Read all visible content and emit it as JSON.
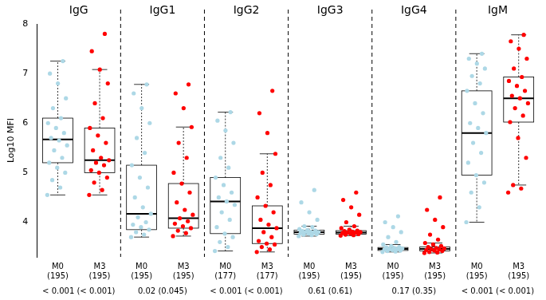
{
  "chart_data": {
    "type": "boxplot",
    "y_label": "Log10 MFI",
    "ylim": [
      3.3,
      8
    ],
    "yticks": [
      4,
      5,
      6,
      7,
      8
    ],
    "grid": false,
    "categories": [
      "M0",
      "M3",
      "M0",
      "M3",
      "M0",
      "M3",
      "M0",
      "M3",
      "M0",
      "M3",
      "M0",
      "M3"
    ],
    "count_labels": [
      "(195)",
      "(195)",
      "(195)",
      "(195)",
      "(177)",
      "(177)",
      "(195)",
      "(195)",
      "(195)",
      "(195)",
      "(195)",
      "(195)"
    ],
    "colors": [
      "#add8e6",
      "#ff0000",
      "#add8e6",
      "#ff0000",
      "#add8e6",
      "#ff0000",
      "#add8e6",
      "#ff0000",
      "#add8e6",
      "#ff0000",
      "#add8e6",
      "#ff0000"
    ],
    "groups": [
      {
        "title": "IgG",
        "p_value": "< 0.001 (< 0.001)"
      },
      {
        "title": "IgG1",
        "p_value": "0.02 (0.045)"
      },
      {
        "title": "IgG2",
        "p_value": "< 0.001 (< 0.001)"
      },
      {
        "title": "IgG3",
        "p_value": "0.61 (0.61)"
      },
      {
        "title": "IgG4",
        "p_value": "0.17 (0.35)"
      },
      {
        "title": "IgM",
        "p_value": "< 0.001 (< 0.001)"
      }
    ],
    "boxes": [
      {
        "stats": [
          4.55,
          5.2,
          5.67,
          6.1,
          7.25
        ],
        "points": [
          4.55,
          4.7,
          4.85,
          5.0,
          5.1,
          5.2,
          5.3,
          5.45,
          5.55,
          5.65,
          5.7,
          5.8,
          5.9,
          6.0,
          6.1,
          6.3,
          6.5,
          6.8,
          7.0,
          7.25
        ]
      },
      {
        "stats": [
          4.55,
          5.0,
          5.25,
          5.9,
          7.08
        ],
        "points": [
          4.55,
          4.65,
          4.8,
          4.9,
          5.0,
          5.05,
          5.15,
          5.2,
          5.25,
          5.3,
          5.45,
          5.6,
          5.75,
          5.9,
          6.1,
          6.4,
          6.8,
          7.08,
          7.45,
          7.8
        ]
      },
      {
        "stats": [
          3.7,
          3.85,
          4.17,
          5.15,
          6.78
        ],
        "points": [
          3.7,
          3.75,
          3.8,
          3.85,
          3.9,
          3.95,
          4.0,
          4.1,
          4.17,
          4.3,
          4.5,
          4.7,
          4.9,
          5.15,
          5.4,
          5.7,
          6.0,
          6.3,
          6.6,
          6.78
        ]
      },
      {
        "stats": [
          3.72,
          3.88,
          4.08,
          4.78,
          5.92
        ],
        "points": [
          3.72,
          3.78,
          3.83,
          3.88,
          3.92,
          3.97,
          4.02,
          4.08,
          4.15,
          4.25,
          4.4,
          4.6,
          4.78,
          5.0,
          5.3,
          5.6,
          5.92,
          6.3,
          6.6,
          6.78
        ]
      },
      {
        "stats": [
          3.42,
          3.77,
          4.42,
          4.9,
          6.22
        ],
        "points": [
          3.42,
          3.5,
          3.6,
          3.7,
          3.77,
          3.9,
          4.05,
          4.2,
          4.35,
          4.42,
          4.5,
          4.6,
          4.75,
          4.9,
          5.1,
          5.3,
          5.6,
          5.85,
          6.05,
          6.22
        ]
      },
      {
        "stats": [
          3.4,
          3.57,
          3.88,
          4.33,
          5.38
        ],
        "points": [
          3.4,
          3.45,
          3.5,
          3.55,
          3.57,
          3.62,
          3.7,
          3.8,
          3.88,
          3.95,
          4.05,
          4.2,
          4.33,
          4.5,
          4.75,
          5.0,
          5.38,
          5.8,
          6.2,
          6.65
        ]
      },
      {
        "stats": [
          3.72,
          3.76,
          3.8,
          3.84,
          3.92
        ],
        "points": [
          3.72,
          3.74,
          3.75,
          3.76,
          3.77,
          3.78,
          3.79,
          3.8,
          3.8,
          3.81,
          3.82,
          3.83,
          3.84,
          3.86,
          3.9,
          3.92,
          4.05,
          4.2,
          4.4,
          4.65
        ]
      },
      {
        "stats": [
          3.73,
          3.76,
          3.79,
          3.83,
          3.92
        ],
        "points": [
          3.73,
          3.74,
          3.75,
          3.76,
          3.77,
          3.78,
          3.79,
          3.79,
          3.8,
          3.81,
          3.82,
          3.83,
          3.85,
          3.88,
          3.92,
          4.0,
          4.15,
          4.3,
          4.45,
          4.6
        ]
      },
      {
        "stats": [
          3.4,
          3.43,
          3.46,
          3.49,
          3.55
        ],
        "points": [
          3.4,
          3.41,
          3.42,
          3.43,
          3.44,
          3.45,
          3.46,
          3.46,
          3.47,
          3.48,
          3.49,
          3.5,
          3.52,
          3.55,
          3.6,
          3.7,
          3.8,
          3.9,
          4.0,
          4.12
        ]
      },
      {
        "stats": [
          3.38,
          3.42,
          3.46,
          3.5,
          3.58
        ],
        "points": [
          3.38,
          3.39,
          3.4,
          3.42,
          3.43,
          3.44,
          3.45,
          3.46,
          3.47,
          3.48,
          3.5,
          3.52,
          3.55,
          3.58,
          3.65,
          3.75,
          3.9,
          4.05,
          4.25,
          4.5
        ]
      },
      {
        "stats": [
          4.0,
          4.95,
          5.8,
          6.65,
          7.4
        ],
        "points": [
          4.0,
          4.3,
          4.6,
          4.8,
          4.95,
          5.2,
          5.4,
          5.6,
          5.8,
          5.9,
          6.0,
          6.2,
          6.4,
          6.65,
          6.8,
          6.95,
          7.1,
          7.2,
          7.3,
          7.4
        ]
      },
      {
        "stats": [
          4.75,
          6.02,
          6.5,
          6.93,
          7.78
        ],
        "points": [
          4.6,
          4.68,
          4.75,
          5.3,
          5.7,
          6.02,
          6.15,
          6.3,
          6.4,
          6.5,
          6.55,
          6.65,
          6.75,
          6.85,
          6.93,
          7.1,
          7.3,
          7.5,
          7.65,
          7.78
        ]
      }
    ]
  }
}
